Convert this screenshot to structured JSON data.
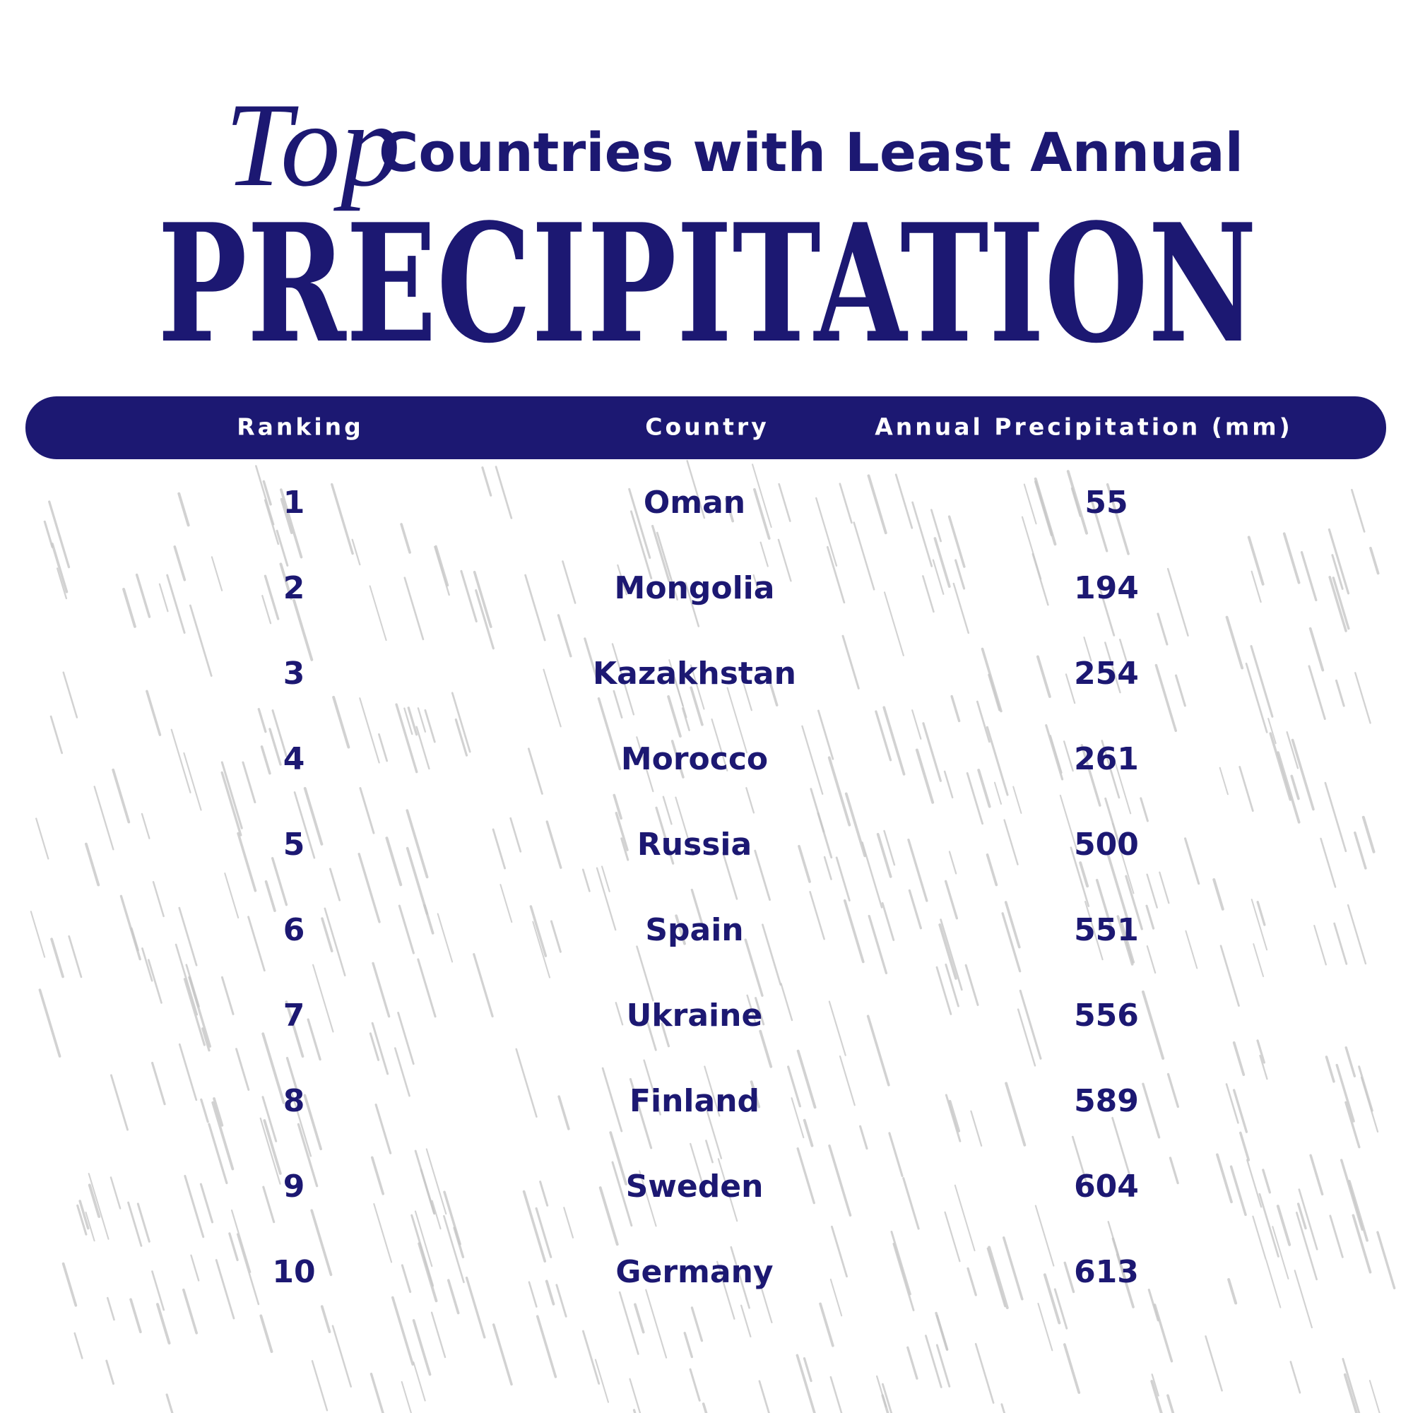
{
  "title": {
    "prefix": "Top",
    "line1": "Countries with Least Annual",
    "line2": "PRECIPITATION"
  },
  "table": {
    "header": [
      "Ranking",
      "Country",
      "Annual Precipitation (mm)"
    ],
    "rows": [
      [
        1,
        "Oman",
        55
      ],
      [
        2,
        "Mongolia",
        194
      ],
      [
        3,
        "Kazakhstan",
        254
      ],
      [
        4,
        "Morocco",
        261
      ],
      [
        5,
        "Russia",
        500
      ],
      [
        6,
        "Spain",
        551
      ],
      [
        7,
        "Ukraine",
        556
      ],
      [
        8,
        "Finland",
        589
      ],
      [
        9,
        "Sweden",
        604
      ],
      [
        10,
        "Germany",
        613
      ]
    ]
  }
}
